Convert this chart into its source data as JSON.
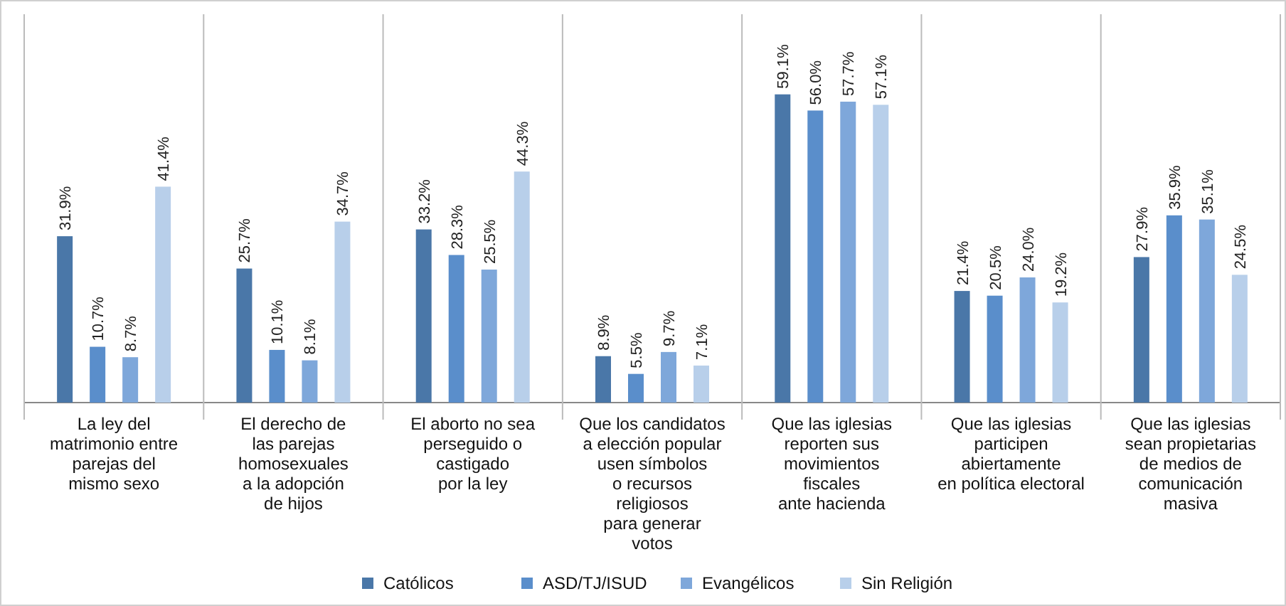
{
  "chart_data": {
    "type": "bar",
    "categories": [
      "La ley del\nmatrimonio entre\nparejas del\nmismo sexo",
      "El derecho de\nlas parejas\nhomosexuales\na la adopción\nde hijos",
      "El aborto no sea\nperseguido o\ncastigado\npor la ley",
      "Que los candidatos\na elección popular\nusen símbolos\no recursos\nreligiosos\npara generar\nvotos",
      "Que las iglesias\nreporten sus\nmovimientos\nfiscales\nante hacienda",
      "Que las iglesias\nparticipen\nabiertamente\nen política electoral",
      "Que las iglesias\nsean propietarias\nde medios de\ncomunicación\nmasiva"
    ],
    "series": [
      {
        "name": "Católicos",
        "color": "#4a77a8",
        "values": [
          31.9,
          25.7,
          33.2,
          8.9,
          59.1,
          21.4,
          27.9
        ],
        "value_labels": [
          "31.9%",
          "25.7%",
          "33.2%",
          "8.9%",
          "59.1%",
          "21.4%",
          "27.9%"
        ]
      },
      {
        "name": "ASD/TJ/ISUD",
        "color": "#5a8ecb",
        "values": [
          10.7,
          10.1,
          28.3,
          5.5,
          56.0,
          20.5,
          35.9
        ],
        "value_labels": [
          "10.7%",
          "10.1%",
          "28.3%",
          "5.5%",
          "56.0%",
          "20.5%",
          "35.9%"
        ]
      },
      {
        "name": "Evangélicos",
        "color": "#7ea7da",
        "values": [
          8.7,
          8.1,
          25.5,
          9.7,
          57.7,
          24.0,
          35.1
        ],
        "value_labels": [
          "8.7%",
          "8.1%",
          "25.5%",
          "9.7%",
          "57.7%",
          "24.0%",
          "35.1%"
        ]
      },
      {
        "name": "Sin Religión",
        "color": "#b8cfea",
        "values": [
          41.4,
          34.7,
          44.3,
          7.1,
          57.1,
          19.2,
          24.5
        ],
        "value_labels": [
          "41.4%",
          "34.7%",
          "44.3%",
          "7.1%",
          "57.1%",
          "19.2%",
          "24.5%"
        ]
      }
    ],
    "legend": "bottom"
  }
}
